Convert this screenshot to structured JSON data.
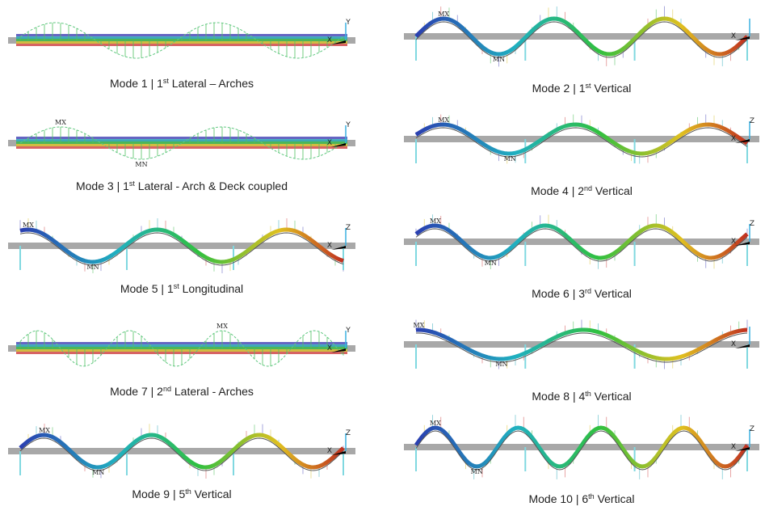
{
  "panels": [
    {
      "caption": {
        "prefix": "Mode 1 | 1",
        "sup": "st",
        "suffix": " Lateral – Arches"
      },
      "labels": [
        "Y",
        "X"
      ]
    },
    {
      "caption": {
        "prefix": "Mode 2 | 1",
        "sup": "st",
        "suffix": " Vertical"
      },
      "labels": [
        "MX",
        "MN",
        "X"
      ]
    },
    {
      "caption": {
        "prefix": "Mode 3 | 1",
        "sup": "st",
        "suffix": " Lateral - Arch & Deck coupled"
      },
      "labels": [
        "MN",
        "MX",
        "Y",
        "X"
      ]
    },
    {
      "caption": {
        "prefix": "Mode 4 | 2",
        "sup": "nd",
        "suffix": " Vertical"
      },
      "labels": [
        "MX",
        "MN",
        "Z",
        "X"
      ]
    },
    {
      "caption": {
        "prefix": "Mode 5 | 1",
        "sup": "st",
        "suffix": " Longitudinal"
      },
      "labels": [
        "MX",
        "MN",
        "Z",
        "X"
      ]
    },
    {
      "caption": {
        "prefix": "Mode 6 | 3",
        "sup": "rd",
        "suffix": " Vertical"
      },
      "labels": [
        "MX",
        "MN",
        "Z",
        "X"
      ]
    },
    {
      "caption": {
        "prefix": "Mode 7 | 2",
        "sup": "nd",
        "suffix": " Lateral - Arches"
      },
      "labels": [
        "MX",
        "Y",
        "X"
      ]
    },
    {
      "caption": {
        "prefix": "Mode 8 | 4",
        "sup": "th",
        "suffix": " Vertical"
      },
      "labels": [
        "MX",
        "MN",
        "X"
      ]
    },
    {
      "caption": {
        "prefix": "Mode 9 | 5",
        "sup": "th",
        "suffix": " Vertical"
      },
      "labels": [
        "MN",
        "MX",
        "Z",
        "X"
      ]
    },
    {
      "caption": {
        "prefix": "Mode 10 | 6",
        "sup": "th",
        "suffix": " Vertical"
      },
      "labels": [
        "MX",
        "MN",
        "Z",
        "X"
      ]
    }
  ]
}
